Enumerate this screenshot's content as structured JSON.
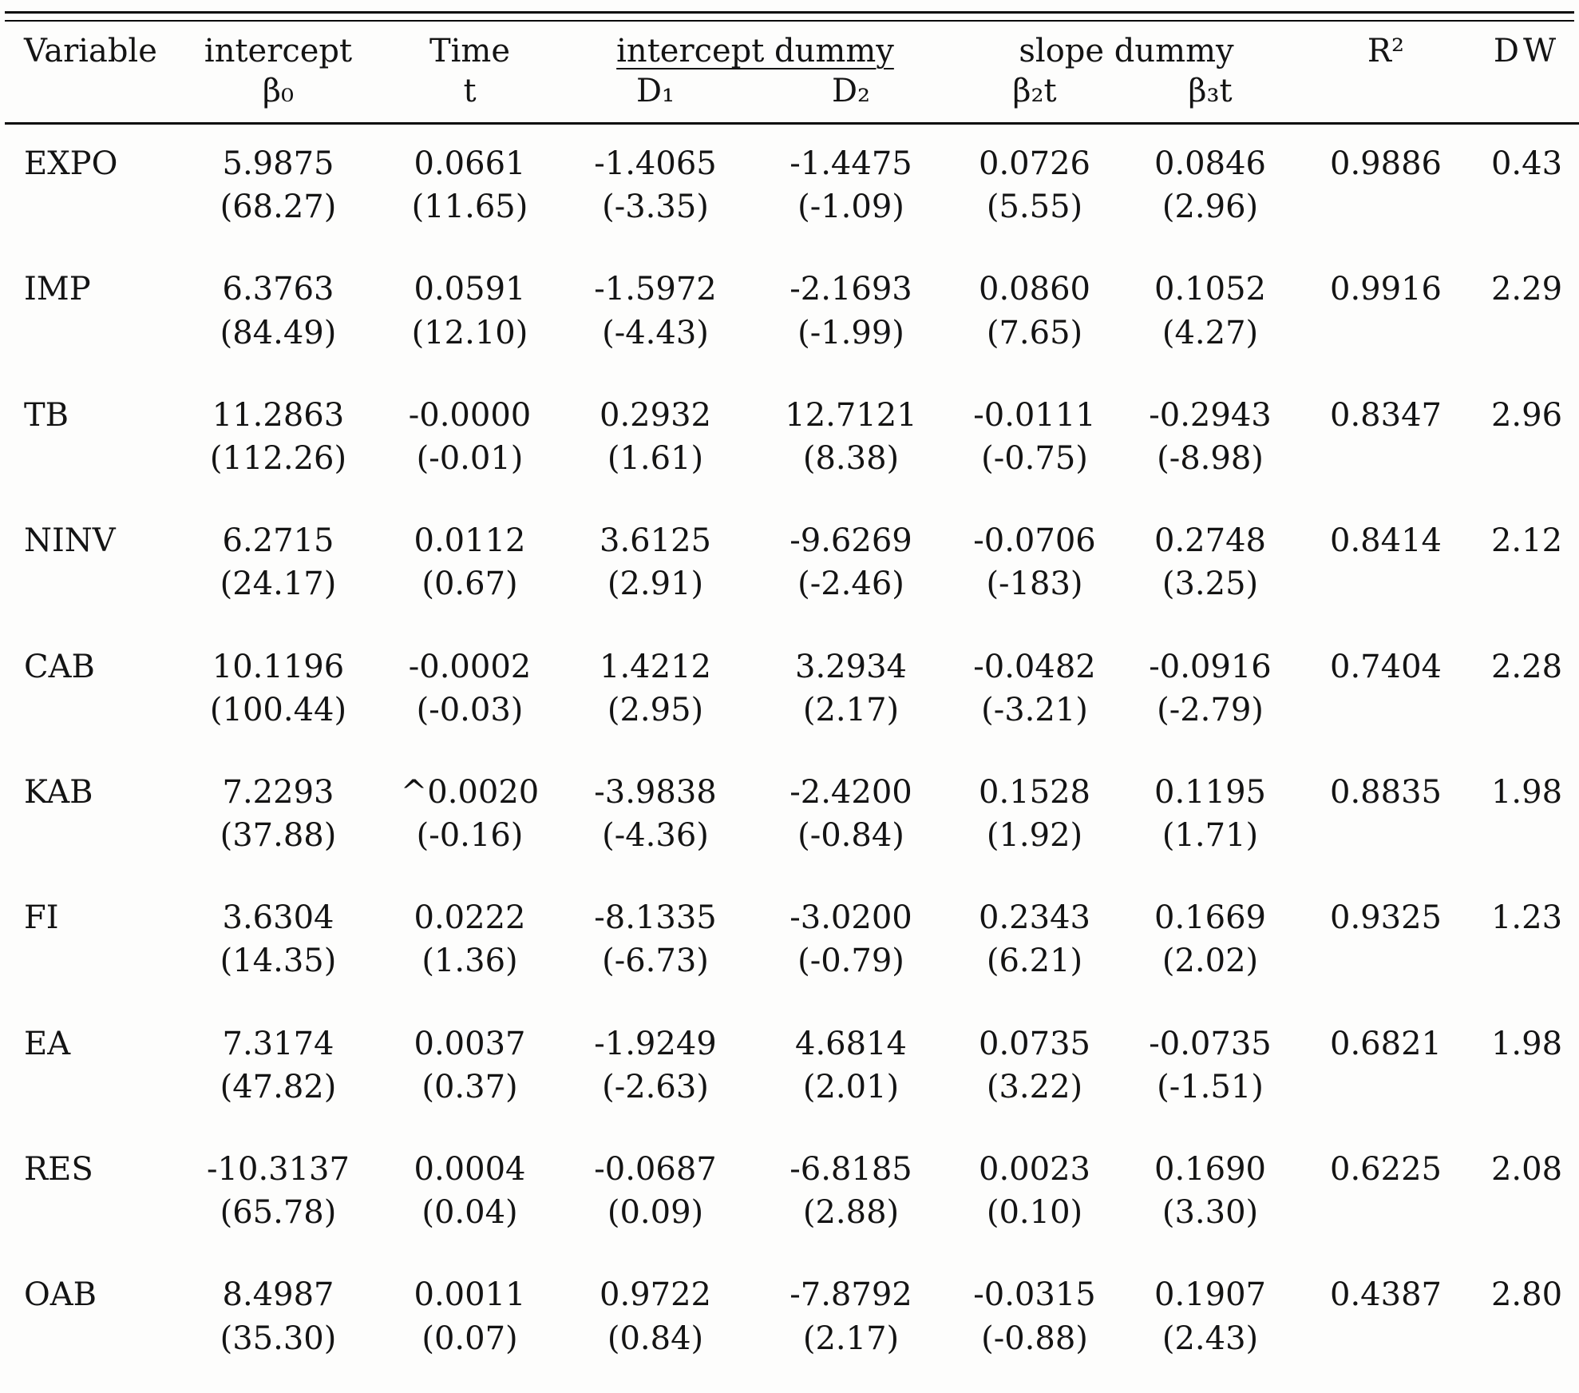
{
  "table": {
    "headers": {
      "variable": "Variable",
      "intercept_label": "intercept",
      "intercept_sym": "β₀",
      "time_label": "Time",
      "time_sym": "t",
      "intercept_dummy_label": "intercept dummy",
      "d1": "D₁",
      "d2": "D₂",
      "slope_dummy_label": "slope dummy",
      "b2t": "β₂t",
      "b3t": "β₃t",
      "r2": "R²",
      "dw": "DW"
    },
    "rows": [
      {
        "variable": "EXPO",
        "cells": [
          [
            "5.9875",
            "(68.27)"
          ],
          [
            "0.0661",
            "(11.65)"
          ],
          [
            "-1.4065",
            "(-3.35)"
          ],
          [
            "-1.4475",
            "(-1.09)"
          ],
          [
            "0.0726",
            "(5.55)"
          ],
          [
            "0.0846",
            "(2.96)"
          ]
        ],
        "r2": "0.9886",
        "dw": "0.43"
      },
      {
        "variable": "IMP",
        "cells": [
          [
            "6.3763",
            "(84.49)"
          ],
          [
            "0.0591",
            "(12.10)"
          ],
          [
            "-1.5972",
            "(-4.43)"
          ],
          [
            "-2.1693",
            "(-1.99)"
          ],
          [
            "0.0860",
            "(7.65)"
          ],
          [
            "0.1052",
            "(4.27)"
          ]
        ],
        "r2": "0.9916",
        "dw": "2.29"
      },
      {
        "variable": "TB",
        "cells": [
          [
            "11.2863",
            "(112.26)"
          ],
          [
            "-0.0000",
            "(-0.01)"
          ],
          [
            "0.2932",
            "(1.61)"
          ],
          [
            "12.7121",
            "(8.38)"
          ],
          [
            "-0.0111",
            "(-0.75)"
          ],
          [
            "-0.2943",
            "(-8.98)"
          ]
        ],
        "r2": "0.8347",
        "dw": "2.96"
      },
      {
        "variable": "NINV",
        "cells": [
          [
            "6.2715",
            "(24.17)"
          ],
          [
            "0.0112",
            "(0.67)"
          ],
          [
            "3.6125",
            "(2.91)"
          ],
          [
            "-9.6269",
            "(-2.46)"
          ],
          [
            "-0.0706",
            "(-183)"
          ],
          [
            "0.2748",
            "(3.25)"
          ]
        ],
        "r2": "0.8414",
        "dw": "2.12"
      },
      {
        "variable": "CAB",
        "cells": [
          [
            "10.1196",
            "(100.44)"
          ],
          [
            "-0.0002",
            "(-0.03)"
          ],
          [
            "1.4212",
            "(2.95)"
          ],
          [
            "3.2934",
            "(2.17)"
          ],
          [
            "-0.0482",
            "(-3.21)"
          ],
          [
            "-0.0916",
            "(-2.79)"
          ]
        ],
        "r2": "0.7404",
        "dw": "2.28"
      },
      {
        "variable": "KAB",
        "cells": [
          [
            "^0.0020",
            "(-0.16)"
          ],
          [
            "-3.9838",
            "(-4.36)"
          ],
          [
            "-2.4200",
            "(-0.84)"
          ],
          [
            "0.1528",
            "(1.92)"
          ],
          [
            "0.1195",
            "(1.71)"
          ],
          [
            "",
            ""
          ]
        ],
        "r2": "0.8835",
        "dw": "1.98"
      },
      {
        "variable": "FI",
        "cells": [
          [
            "3.6304",
            "(14.35)"
          ],
          [
            "0.0222",
            "(1.36)"
          ],
          [
            "-8.1335",
            "(-6.73)"
          ],
          [
            "-3.0200",
            "(-0.79)"
          ],
          [
            "0.2343",
            "(6.21)"
          ],
          [
            "0.1669",
            "(2.02)"
          ]
        ],
        "r2": "0.9325",
        "dw": "1.23"
      },
      {
        "variable": "EA",
        "cells": [
          [
            "7.3174",
            "(47.82)"
          ],
          [
            "0.0037",
            "(0.37)"
          ],
          [
            "-1.9249",
            "(-2.63)"
          ],
          [
            "4.6814",
            "(2.01)"
          ],
          [
            "0.0735",
            "(3.22)"
          ],
          [
            "-0.0735",
            "(-1.51)"
          ]
        ],
        "r2": "0.6821",
        "dw": "1.98"
      },
      {
        "variable": "RES",
        "cells": [
          [
            "-10.3137",
            "(65.78)"
          ],
          [
            "0.0004",
            "(0.04)"
          ],
          [
            "-0.0687",
            "(0.09)"
          ],
          [
            "-6.8185",
            "(2.88)"
          ],
          [
            "0.0023",
            "(0.10)"
          ],
          [
            "0.1690",
            "(3.30)"
          ]
        ],
        "r2": "0.6225",
        "dw": "2.08"
      },
      {
        "variable": "OAB",
        "cells": [
          [
            "8.4987",
            "(35.30)"
          ],
          [
            "0.0011",
            "(0.07)"
          ],
          [
            "0.9722",
            "(0.84)"
          ],
          [
            "-7.8792",
            "(2.17)"
          ],
          [
            "-0.0315",
            "(-0.88)"
          ],
          [
            "0.1907",
            "(2.43)"
          ]
        ],
        "r2": "0.4387",
        "dw": "2.80"
      }
    ]
  }
}
